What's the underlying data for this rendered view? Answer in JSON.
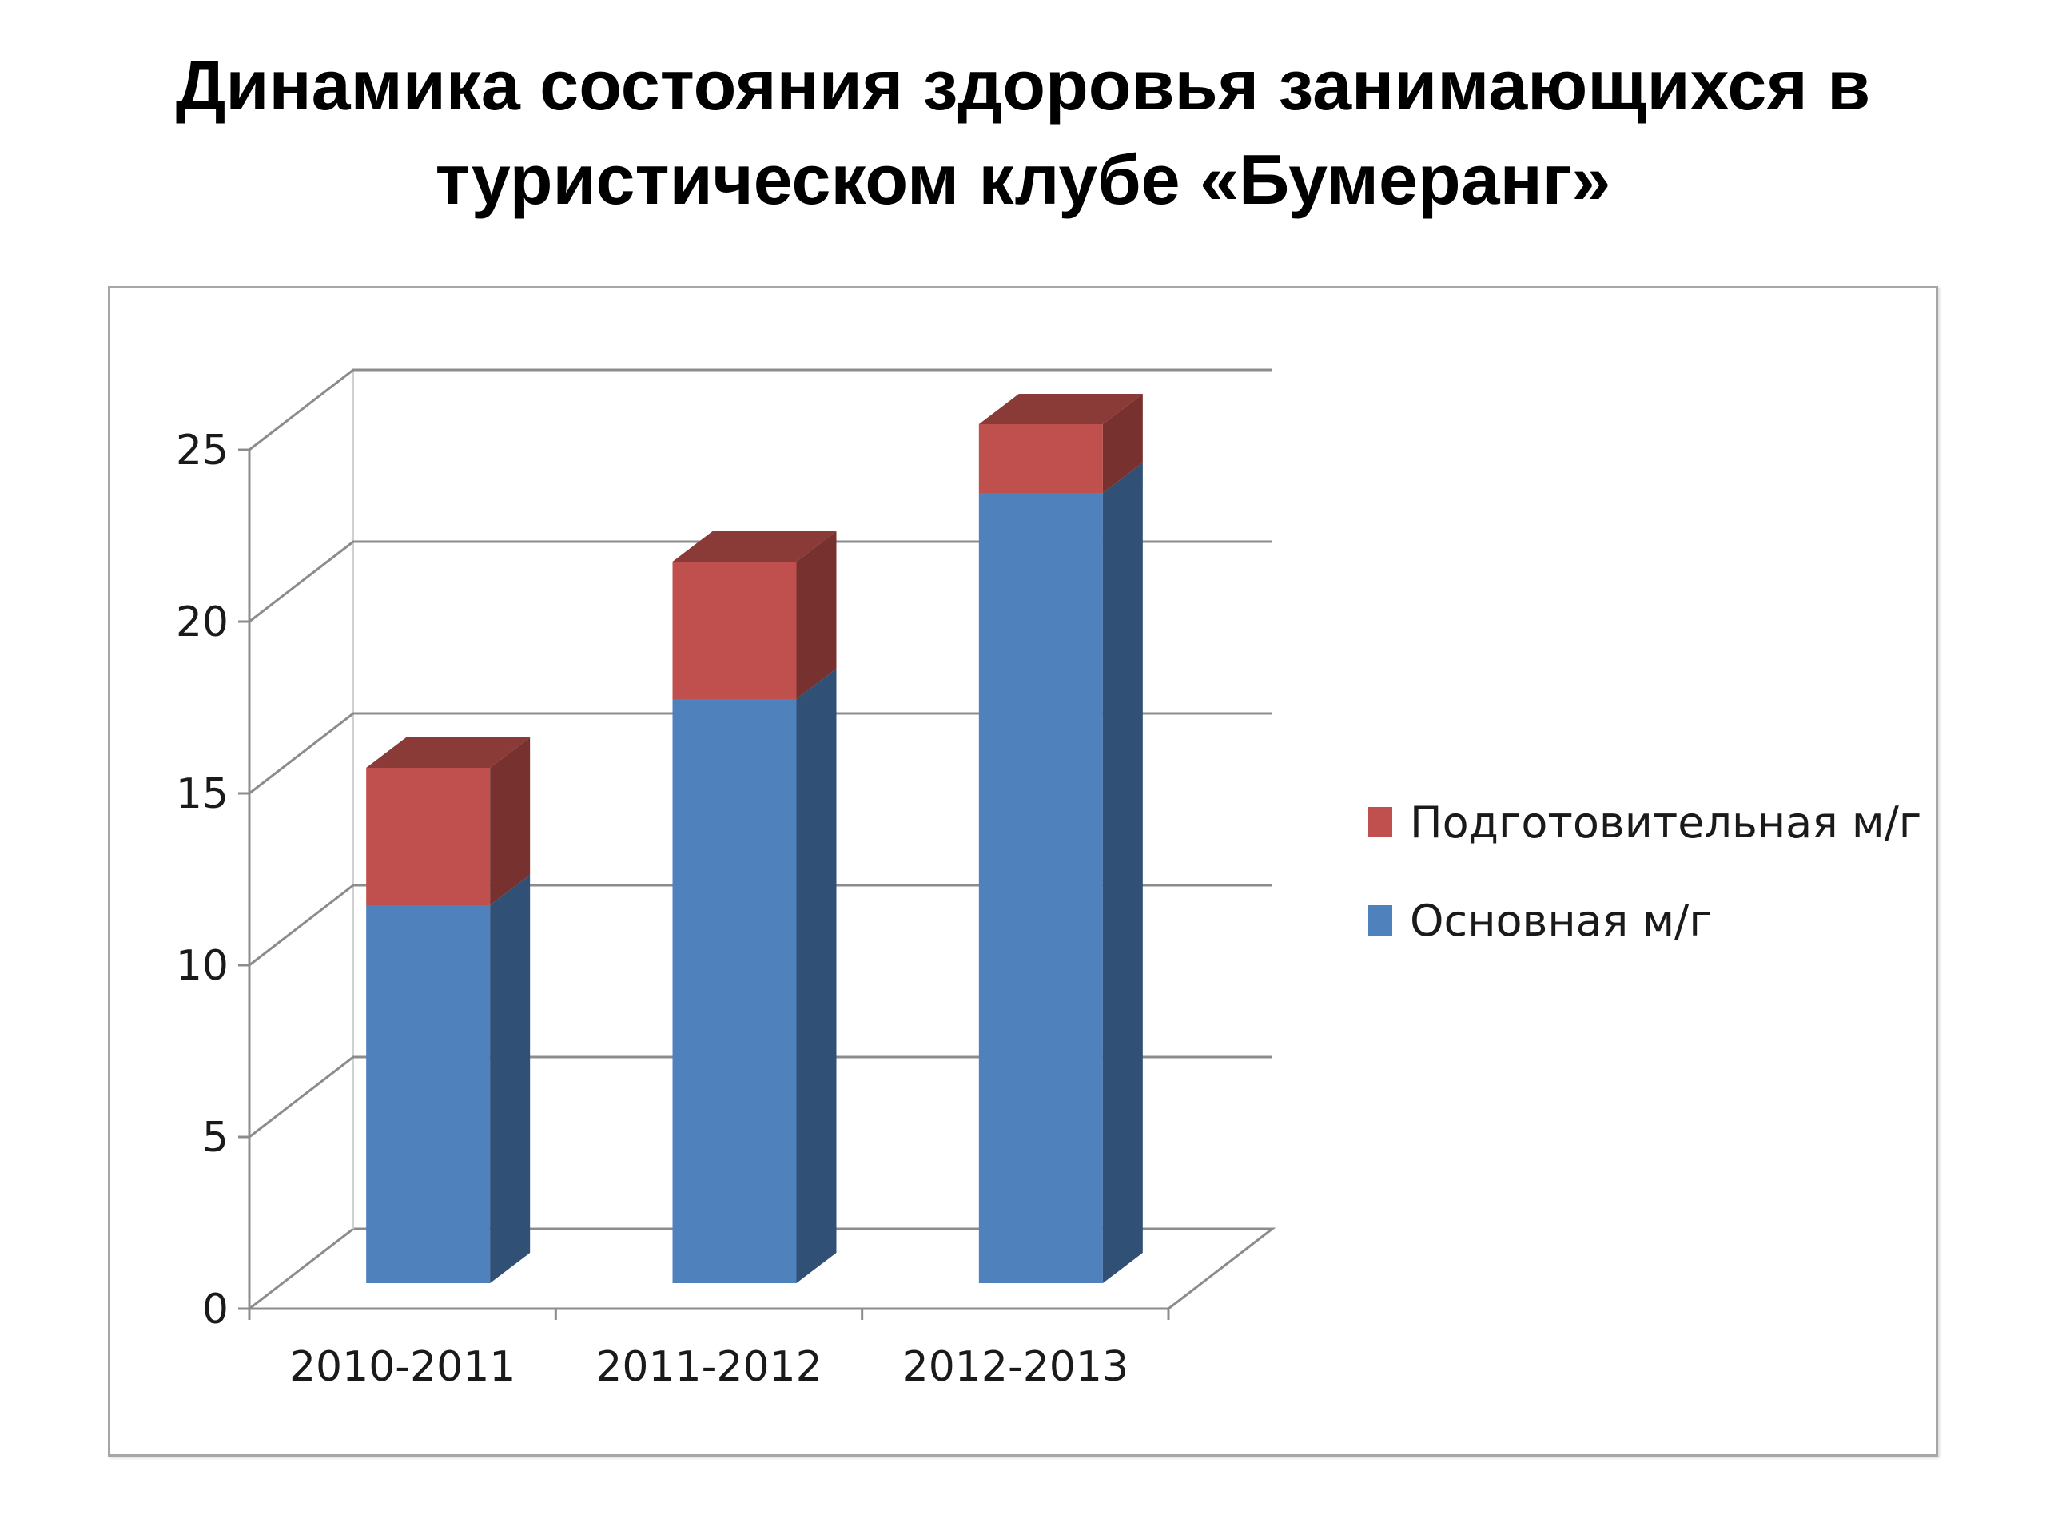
{
  "page_title": "Динамика состояния здоровья занимающихся в туристическом клубе «Бумеранг»",
  "chart_data": {
    "type": "bar",
    "stacked": true,
    "three_d": true,
    "title": "",
    "xlabel": "",
    "ylabel": "",
    "categories": [
      "2010-2011",
      "2011-2012",
      "2012-2013"
    ],
    "series": [
      {
        "name": "Основная м/г",
        "values": [
          11,
          17,
          23
        ],
        "color": "#4f81bd"
      },
      {
        "name": "Подготовительная м/г",
        "values": [
          4,
          4,
          2
        ],
        "color": "#c0504d"
      }
    ],
    "ylim": [
      0,
      25
    ],
    "yticks": [
      "0",
      "5",
      "10",
      "15",
      "20",
      "25"
    ],
    "grid": true,
    "legend_position": "right",
    "legend_order": [
      "Подготовительная м/г",
      "Основная м/г"
    ]
  }
}
